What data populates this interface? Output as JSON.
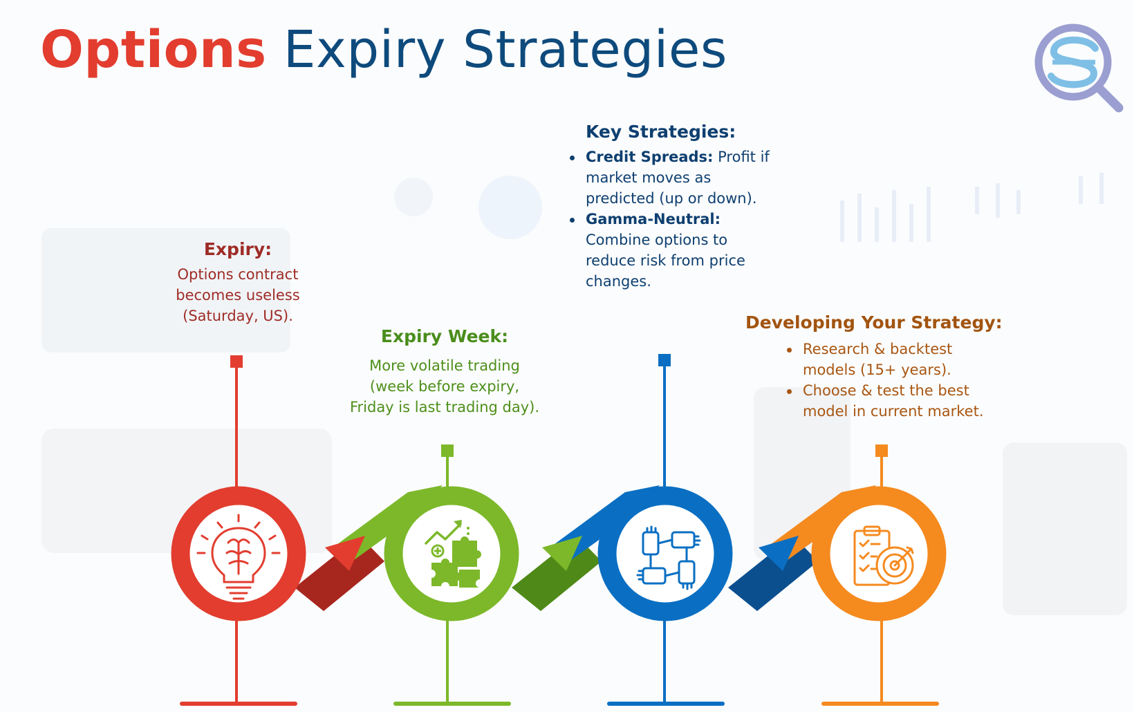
{
  "title": {
    "part1": "Options",
    "part2": "Expiry Strategies"
  },
  "colors": {
    "red": "#e23d2f",
    "green": "#7cb82a",
    "blue": "#0a6fc2",
    "orange": "#f58a1f",
    "navy": "#0e4a7c"
  },
  "steps": [
    {
      "heading": "Expiry:",
      "lines": [
        "Options contract",
        "becomes useless",
        "(Saturday, US)."
      ],
      "icon": "lightbulb-brain-icon"
    },
    {
      "heading": "Expiry Week:",
      "lines": [
        "More volatile trading",
        "(week before expiry,",
        "Friday is last trading day)."
      ],
      "icon": "puzzle-growth-icon"
    },
    {
      "heading": "Key Strategies:",
      "bullets": [
        {
          "term": "Credit Spreads:",
          "text": "Profit if market moves as predicted (up or down)."
        },
        {
          "term": "Gamma-Neutral:",
          "text": "Combine options to reduce risk from price changes."
        }
      ],
      "icon": "teamwork-hands-icon"
    },
    {
      "heading": "Developing Your Strategy:",
      "bullets": [
        {
          "text": "Research & backtest models (15+ years)."
        },
        {
          "text": "Choose & test the best model in current market."
        }
      ],
      "icon": "checklist-target-icon"
    }
  ],
  "logo": {
    "icon": "magnifier-s-logo-icon"
  }
}
